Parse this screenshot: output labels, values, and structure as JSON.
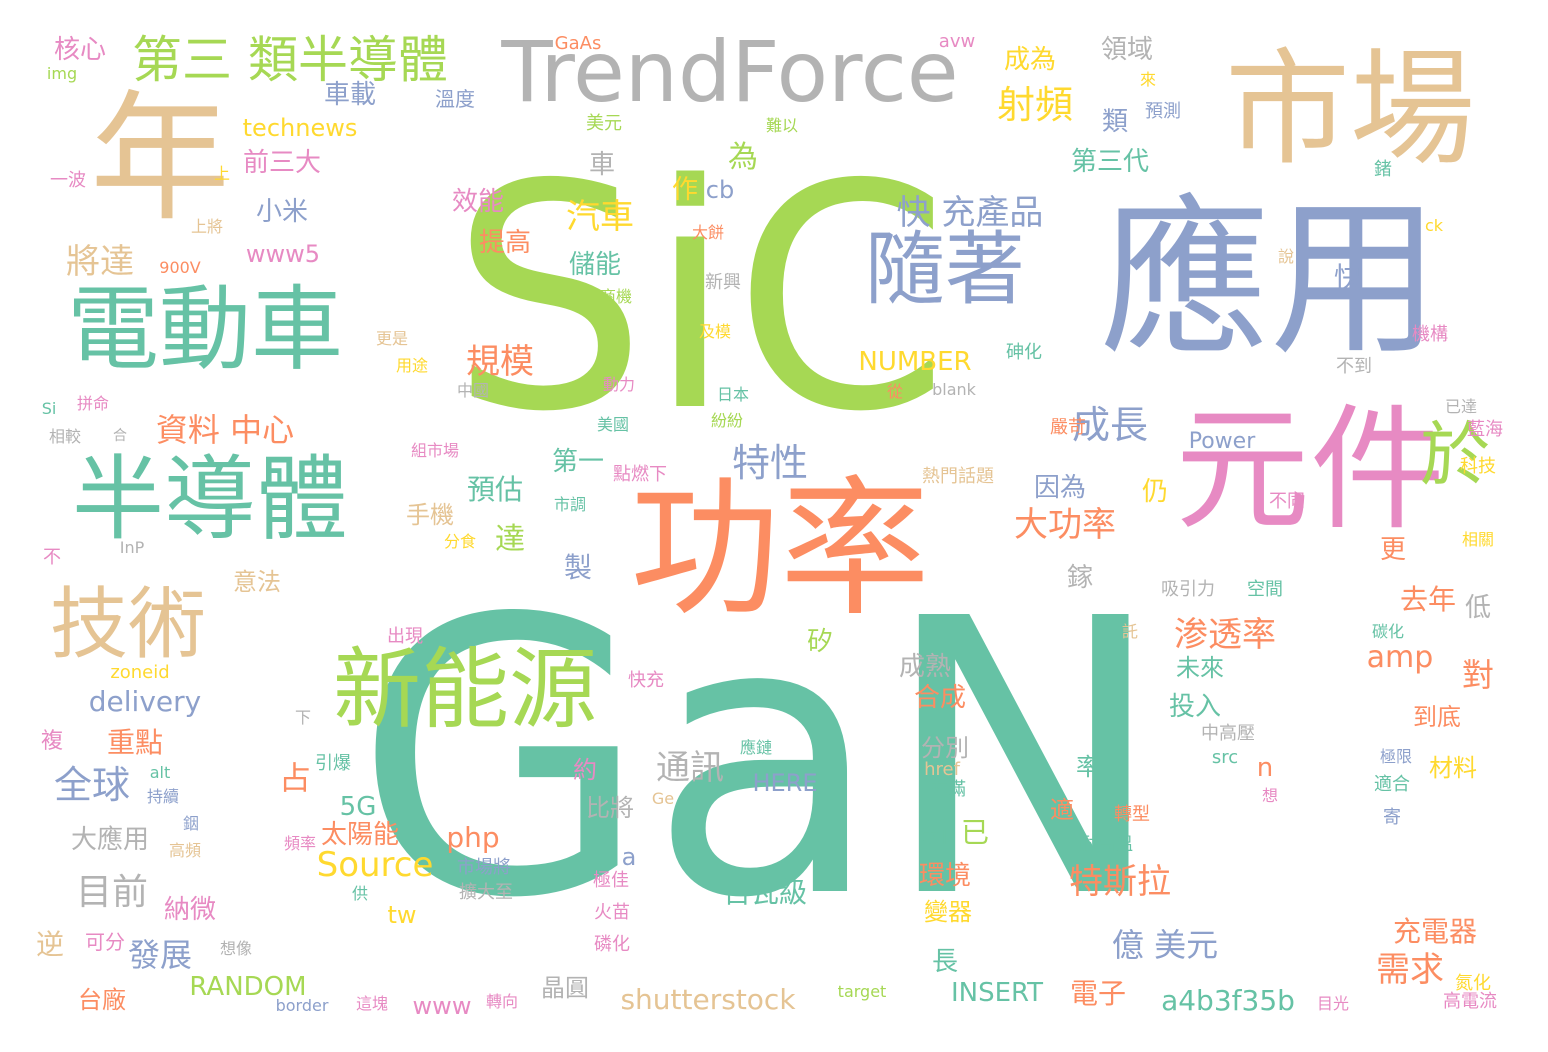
{
  "palette": {
    "green": "#a6d854",
    "teal": "#66c2a5",
    "orange": "#fc8d62",
    "blue": "#8da0cb",
    "pink": "#e78ac3",
    "yellow": "#ffd92f",
    "tan": "#e5c494",
    "gray": "#b3b3b3"
  },
  "words": [
    {
      "text": "SiC",
      "color": "green"
    },
    {
      "text": "GaN",
      "color": "teal"
    },
    {
      "text": "應用",
      "color": "blue"
    },
    {
      "text": "功率",
      "color": "orange"
    },
    {
      "text": "市場",
      "color": "tan"
    },
    {
      "text": "年",
      "color": "tan"
    },
    {
      "text": "元件",
      "color": "pink"
    },
    {
      "text": "TrendForce",
      "color": "gray"
    },
    {
      "text": "電動車",
      "color": "teal"
    },
    {
      "text": "半導體",
      "color": "teal"
    },
    {
      "text": "新能源",
      "color": "green"
    },
    {
      "text": "隨著",
      "color": "blue"
    },
    {
      "text": "技術",
      "color": "tan"
    },
    {
      "text": "於",
      "color": "green"
    },
    {
      "text": "第三 類半導體",
      "color": "green"
    },
    {
      "text": "快 充產品",
      "color": "blue"
    },
    {
      "text": "射頻",
      "color": "yellow"
    },
    {
      "text": "成長",
      "color": "blue"
    },
    {
      "text": "規模",
      "color": "orange"
    },
    {
      "text": "汽車",
      "color": "yellow"
    },
    {
      "text": "特性",
      "color": "blue"
    },
    {
      "text": "大功率",
      "color": "orange"
    },
    {
      "text": "資料 中心",
      "color": "orange"
    },
    {
      "text": "全球",
      "color": "blue"
    },
    {
      "text": "渗透率",
      "color": "orange"
    },
    {
      "text": "特斯拉",
      "color": "orange"
    },
    {
      "text": "億 美元",
      "color": "blue"
    },
    {
      "text": "需求",
      "color": "orange"
    },
    {
      "text": "通訊",
      "color": "gray"
    },
    {
      "text": "發展",
      "color": "blue"
    },
    {
      "text": "目前",
      "color": "gray"
    },
    {
      "text": "Source",
      "color": "yellow"
    },
    {
      "text": "將達",
      "color": "tan"
    },
    {
      "text": "預估",
      "color": "teal"
    },
    {
      "text": "百瓦級",
      "color": "teal"
    },
    {
      "text": "shutterstock",
      "color": "tan"
    },
    {
      "text": "a4b3f35b",
      "color": "teal"
    },
    {
      "text": "RANDOM",
      "color": "green"
    },
    {
      "text": "INSERT",
      "color": "teal"
    },
    {
      "text": "電子",
      "color": "orange"
    },
    {
      "text": "NUMBER",
      "color": "yellow"
    },
    {
      "text": "delivery",
      "color": "blue"
    },
    {
      "text": "amp",
      "color": "orange"
    },
    {
      "text": "對",
      "color": "orange"
    },
    {
      "text": "為",
      "color": "green"
    },
    {
      "text": "重點",
      "color": "orange"
    },
    {
      "text": "占",
      "color": "orange"
    },
    {
      "text": "達",
      "color": "green"
    },
    {
      "text": "車載",
      "color": "blue"
    },
    {
      "text": "成為",
      "color": "yellow"
    },
    {
      "text": "領域",
      "color": "gray"
    },
    {
      "text": "核心",
      "color": "pink"
    },
    {
      "text": "technews",
      "color": "yellow"
    },
    {
      "text": "前三大",
      "color": "pink"
    },
    {
      "text": "小米",
      "color": "blue"
    },
    {
      "text": "www5",
      "color": "pink"
    },
    {
      "text": "效能",
      "color": "pink"
    },
    {
      "text": "提高",
      "color": "orange"
    },
    {
      "text": "儲能",
      "color": "teal"
    },
    {
      "text": "cb",
      "color": "blue"
    },
    {
      "text": "車",
      "color": "gray"
    },
    {
      "text": "作",
      "color": "yellow"
    },
    {
      "text": "第三代",
      "color": "teal"
    },
    {
      "text": "類",
      "color": "blue"
    },
    {
      "text": "快",
      "color": "blue"
    },
    {
      "text": "Power",
      "color": "blue"
    },
    {
      "text": "因為",
      "color": "blue"
    },
    {
      "text": "仍",
      "color": "yellow"
    },
    {
      "text": "更",
      "color": "orange"
    },
    {
      "text": "去年",
      "color": "orange"
    },
    {
      "text": "低",
      "color": "gray"
    },
    {
      "text": "未來",
      "color": "teal"
    },
    {
      "text": "投入",
      "color": "teal"
    },
    {
      "text": "到底",
      "color": "orange"
    },
    {
      "text": "材料",
      "color": "yellow"
    },
    {
      "text": "充電器",
      "color": "orange"
    },
    {
      "text": "第一",
      "color": "teal"
    },
    {
      "text": "手機",
      "color": "tan"
    },
    {
      "text": "製",
      "color": "blue"
    },
    {
      "text": "矽",
      "color": "green"
    },
    {
      "text": "成熟",
      "color": "gray"
    },
    {
      "text": "合成",
      "color": "orange"
    },
    {
      "text": "分別",
      "color": "gray"
    },
    {
      "text": "鎵",
      "color": "gray"
    },
    {
      "text": "意法",
      "color": "tan"
    },
    {
      "text": "比將",
      "color": "gray"
    },
    {
      "text": "約",
      "color": "pink"
    },
    {
      "text": "HERE",
      "color": "blue"
    },
    {
      "text": "5G",
      "color": "teal"
    },
    {
      "text": "太陽能",
      "color": "orange"
    },
    {
      "text": "php",
      "color": "orange"
    },
    {
      "text": "a",
      "color": "blue"
    },
    {
      "text": "n",
      "color": "orange"
    },
    {
      "text": "率",
      "color": "teal"
    },
    {
      "text": "新",
      "color": "teal"
    },
    {
      "text": "已",
      "color": "green"
    },
    {
      "text": "環境",
      "color": "orange"
    },
    {
      "text": "變器",
      "color": "yellow"
    },
    {
      "text": "長",
      "color": "teal"
    },
    {
      "text": "適",
      "color": "orange"
    },
    {
      "text": "大應用",
      "color": "gray"
    },
    {
      "text": "納微",
      "color": "pink"
    },
    {
      "text": "台廠",
      "color": "orange"
    },
    {
      "text": "www",
      "color": "pink"
    },
    {
      "text": "晶圓",
      "color": "gray"
    },
    {
      "text": "tw",
      "color": "yellow"
    },
    {
      "text": "複",
      "color": "pink"
    },
    {
      "text": "逆",
      "color": "tan"
    },
    {
      "text": "可分",
      "color": "pink"
    },
    {
      "text": "GaAs",
      "color": "orange"
    },
    {
      "text": "avw",
      "color": "pink"
    },
    {
      "text": "img",
      "color": "green"
    },
    {
      "text": "溫度",
      "color": "blue"
    },
    {
      "text": "美元",
      "color": "green"
    },
    {
      "text": "難以",
      "color": "green"
    },
    {
      "text": "來",
      "color": "yellow"
    },
    {
      "text": "預測",
      "color": "blue"
    },
    {
      "text": "一波",
      "color": "pink"
    },
    {
      "text": "上",
      "color": "yellow"
    },
    {
      "text": "上將",
      "color": "tan"
    },
    {
      "text": "大餅",
      "color": "orange"
    },
    {
      "text": "新興",
      "color": "gray"
    },
    {
      "text": "商機",
      "color": "green"
    },
    {
      "text": "及模",
      "color": "yellow"
    },
    {
      "text": "900V",
      "color": "orange"
    },
    {
      "text": "更是",
      "color": "tan"
    },
    {
      "text": "用途",
      "color": "yellow"
    },
    {
      "text": "中國",
      "color": "gray"
    },
    {
      "text": "動力",
      "color": "pink"
    },
    {
      "text": "日本",
      "color": "teal"
    },
    {
      "text": "紛紛",
      "color": "green"
    },
    {
      "text": "美國",
      "color": "teal"
    },
    {
      "text": "點燃下",
      "color": "pink"
    },
    {
      "text": "市調",
      "color": "teal"
    },
    {
      "text": "分食",
      "color": "yellow"
    },
    {
      "text": "砷化",
      "color": "teal"
    },
    {
      "text": "從",
      "color": "orange"
    },
    {
      "text": "blank",
      "color": "gray"
    },
    {
      "text": "不到",
      "color": "gray"
    },
    {
      "text": "機構",
      "color": "pink"
    },
    {
      "text": "已達",
      "color": "gray"
    },
    {
      "text": "藍海",
      "color": "pink"
    },
    {
      "text": "科技",
      "color": "yellow"
    },
    {
      "text": "不同",
      "color": "pink"
    },
    {
      "text": "相關",
      "color": "yellow"
    },
    {
      "text": "嚴苛",
      "color": "orange"
    },
    {
      "text": "熱門話題",
      "color": "tan"
    },
    {
      "text": "說",
      "color": "tan"
    },
    {
      "text": "鍺",
      "color": "teal"
    },
    {
      "text": "ck",
      "color": "yellow"
    },
    {
      "text": "拼命",
      "color": "pink"
    },
    {
      "text": "Si",
      "color": "teal"
    },
    {
      "text": "相較",
      "color": "gray"
    },
    {
      "text": "合",
      "color": "gray"
    },
    {
      "text": "組市場",
      "color": "pink"
    },
    {
      "text": "不",
      "color": "pink"
    },
    {
      "text": "InP",
      "color": "gray"
    },
    {
      "text": "吸引力",
      "color": "gray"
    },
    {
      "text": "空間",
      "color": "teal"
    },
    {
      "text": "託",
      "color": "tan"
    },
    {
      "text": "碳化",
      "color": "teal"
    },
    {
      "text": "出現",
      "color": "pink"
    },
    {
      "text": "zoneid",
      "color": "yellow"
    },
    {
      "text": "快充",
      "color": "pink"
    },
    {
      "text": "下",
      "color": "gray"
    },
    {
      "text": "應鏈",
      "color": "teal"
    },
    {
      "text": "alt",
      "color": "teal"
    },
    {
      "text": "持續",
      "color": "blue"
    },
    {
      "text": "引爆",
      "color": "teal"
    },
    {
      "text": "href",
      "color": "tan"
    },
    {
      "text": "充滿",
      "color": "teal"
    },
    {
      "text": "Ge",
      "color": "tan"
    },
    {
      "text": "src",
      "color": "teal"
    },
    {
      "text": "中高壓",
      "color": "gray"
    },
    {
      "text": "極限",
      "color": "blue"
    },
    {
      "text": "適合",
      "color": "teal"
    },
    {
      "text": "想",
      "color": "pink"
    },
    {
      "text": "寄",
      "color": "blue"
    },
    {
      "text": "銦",
      "color": "blue"
    },
    {
      "text": "高頻",
      "color": "tan"
    },
    {
      "text": "頻率",
      "color": "pink"
    },
    {
      "text": "市場將",
      "color": "blue"
    },
    {
      "text": "供",
      "color": "teal"
    },
    {
      "text": "擴大至",
      "color": "gray"
    },
    {
      "text": "極佳",
      "color": "pink"
    },
    {
      "text": "火苗",
      "color": "pink"
    },
    {
      "text": "磷化",
      "color": "pink"
    },
    {
      "text": "轉型",
      "color": "orange"
    },
    {
      "text": "耐高溫",
      "color": "teal"
    },
    {
      "text": "想像",
      "color": "gray"
    },
    {
      "text": "這塊",
      "color": "pink"
    },
    {
      "text": "border",
      "color": "blue"
    },
    {
      "text": "轉向",
      "color": "pink"
    },
    {
      "text": "target",
      "color": "green"
    },
    {
      "text": "目光",
      "color": "pink"
    },
    {
      "text": "氮化",
      "color": "yellow"
    },
    {
      "text": "高電流",
      "color": "pink"
    }
  ]
}
